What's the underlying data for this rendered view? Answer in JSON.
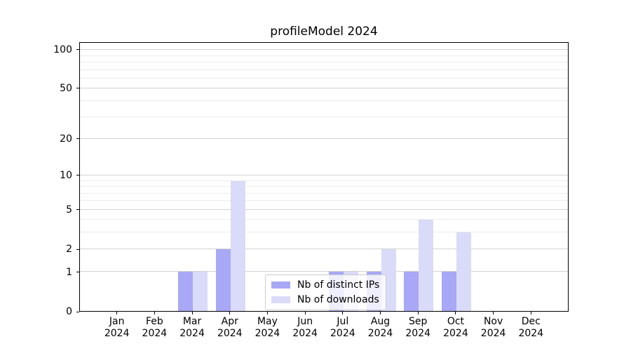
{
  "chart_data": {
    "type": "bar",
    "title": "profileModel 2024",
    "categories": [
      "Jan",
      "Feb",
      "Mar",
      "Apr",
      "May",
      "Jun",
      "Jul",
      "Aug",
      "Sep",
      "Oct",
      "Nov",
      "Dec"
    ],
    "category_year": "2024",
    "series": [
      {
        "name": "Nb of distinct IPs",
        "color": "#a8a8f6",
        "values": [
          0,
          0,
          1,
          2,
          0,
          0,
          1,
          1,
          1,
          1,
          0,
          0
        ]
      },
      {
        "name": "Nb of downloads",
        "color": "#dadaf9",
        "values": [
          0,
          0,
          1,
          9,
          0,
          0,
          1,
          2,
          4,
          3,
          0,
          0
        ]
      }
    ],
    "xlabel": "",
    "ylabel": "",
    "yscale": "log1p",
    "ylim": [
      0,
      114
    ],
    "yticks": [
      0,
      1,
      2,
      5,
      10,
      20,
      50,
      100
    ],
    "yticks_minor": [
      3,
      4,
      6,
      7,
      8,
      9,
      30,
      40,
      60,
      70,
      80,
      90
    ],
    "grid": "horizontal",
    "legend_position": "lower center, inside plot"
  },
  "styles": {
    "background": "#ffffff",
    "axis_color": "#000000",
    "major_grid_color": "#d3d3d3",
    "minor_grid_color": "#ececec",
    "legend_border_color": "#cccccc"
  }
}
